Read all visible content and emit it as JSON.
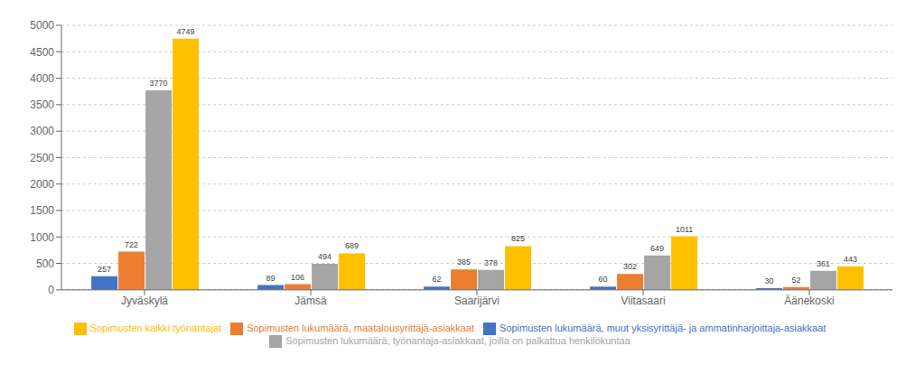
{
  "chart_data": {
    "type": "bar",
    "categories": [
      "Jyväskylä",
      "Jämsä",
      "Saarijärvi",
      "Viitasaari",
      "Äänekoski"
    ],
    "series": [
      {
        "name": "Sopimusten lukumäärä, muut yksisyrittäjä- ja ammatinharjoittaja-asiakkaat",
        "values": [
          257,
          89,
          62,
          60,
          30
        ],
        "color": "#4472C4"
      },
      {
        "name": "Sopimusten lukumäärä, maatalousyrittäjä-asiakkaat",
        "values": [
          722,
          106,
          385,
          302,
          52
        ],
        "color": "#ED7D31"
      },
      {
        "name": "Sopimusten lukumäärä, työnantaja-asiakkaat, joilla on palkattua henkilökuntaa",
        "values": [
          3770,
          494,
          378,
          649,
          361
        ],
        "color": "#A5A5A5"
      },
      {
        "name": "Sopimusten kaikki työnantajat",
        "values": [
          4749,
          689,
          825,
          1011,
          443
        ],
        "color": "#FFC000"
      }
    ],
    "ylim": [
      0,
      5000
    ],
    "yticks": [
      0,
      500,
      1000,
      1500,
      2000,
      2500,
      3000,
      3500,
      4000,
      4500,
      5000
    ],
    "grid": true,
    "legend": "bottom",
    "data_labels": true
  }
}
